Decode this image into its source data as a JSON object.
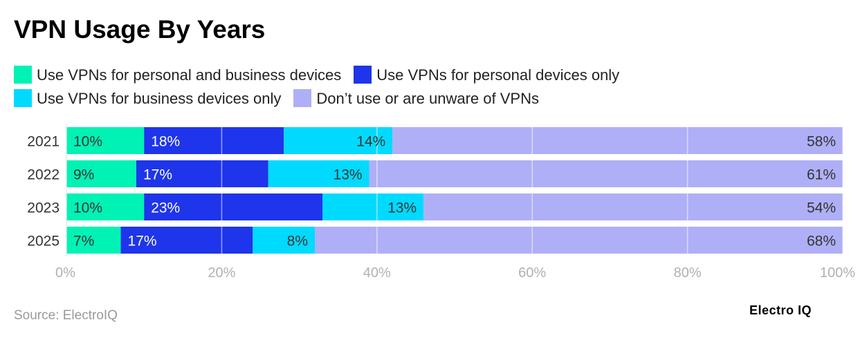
{
  "title": "VPN Usage By Years",
  "source": "Source: ElectroIQ",
  "logo": "Electro IQ",
  "chart_data": {
    "type": "bar",
    "orientation": "horizontal",
    "stacked": true,
    "categories": [
      "2021",
      "2022",
      "2023",
      "2025"
    ],
    "series": [
      {
        "name": "Use VPNs for personal and business devices",
        "color": "#00F2B4",
        "label_color": "#333333",
        "values": [
          10,
          9,
          10,
          7
        ]
      },
      {
        "name": "Use VPNs for personal devices only",
        "color": "#1E35EB",
        "label_color": "#ffffff",
        "values": [
          18,
          17,
          23,
          17
        ]
      },
      {
        "name": "Use VPNs for business devices only",
        "color": "#00DAFF",
        "label_color": "#333333",
        "values": [
          14,
          13,
          13,
          8
        ]
      },
      {
        "name": "Don’t use or are unware of VPNs",
        "color": "#AFAFF7",
        "label_color": "#333333",
        "values": [
          58,
          61,
          54,
          68
        ]
      }
    ],
    "xlim": [
      0,
      100
    ],
    "xticks": [
      "0%",
      "20%",
      "40%",
      "60%",
      "80%",
      "100%"
    ],
    "grid": true,
    "legend_position": "top"
  }
}
